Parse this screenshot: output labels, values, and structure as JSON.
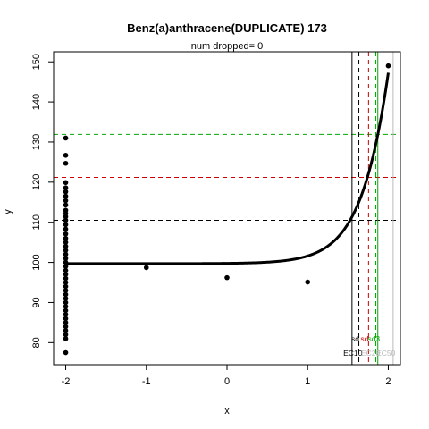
{
  "chart_data": {
    "type": "scatter",
    "title": "Benz(a)anthracene(DUPLICATE) 173",
    "subtitle": "num dropped= 0",
    "subtitle_color": "#ff0000",
    "xlabel": "x",
    "ylabel": "y",
    "xlim": [
      -2.15,
      2.15
    ],
    "ylim": [
      74.5,
      152.5
    ],
    "x_ticks": [
      -2,
      -1,
      0,
      1,
      2
    ],
    "y_ticks": [
      80,
      90,
      100,
      110,
      120,
      130,
      140,
      150
    ],
    "points": [
      {
        "x": -2,
        "y": 131.0
      },
      {
        "x": -2,
        "y": 126.7
      },
      {
        "x": -2,
        "y": 124.7
      },
      {
        "x": -2,
        "y": 119.9
      },
      {
        "x": -2,
        "y": 118.6
      },
      {
        "x": -2,
        "y": 117.6
      },
      {
        "x": -2,
        "y": 116.5
      },
      {
        "x": -2,
        "y": 115.4
      },
      {
        "x": -2,
        "y": 114.3
      },
      {
        "x": -2,
        "y": 113.0
      },
      {
        "x": -2,
        "y": 112.2
      },
      {
        "x": -2,
        "y": 111.4
      },
      {
        "x": -2,
        "y": 110.5
      },
      {
        "x": -2,
        "y": 109.4
      },
      {
        "x": -2,
        "y": 108.3
      },
      {
        "x": -2,
        "y": 107.1
      },
      {
        "x": -2,
        "y": 106.0
      },
      {
        "x": -2,
        "y": 105.0
      },
      {
        "x": -2,
        "y": 104.0
      },
      {
        "x": -2,
        "y": 103.0
      },
      {
        "x": -2,
        "y": 102.0
      },
      {
        "x": -2,
        "y": 101.0
      },
      {
        "x": -2,
        "y": 100.0
      },
      {
        "x": -2,
        "y": 99.0
      },
      {
        "x": -2,
        "y": 98.0
      },
      {
        "x": -2,
        "y": 97.0
      },
      {
        "x": -2,
        "y": 96.0
      },
      {
        "x": -2,
        "y": 95.0
      },
      {
        "x": -2,
        "y": 94.0
      },
      {
        "x": -2,
        "y": 93.0
      },
      {
        "x": -2,
        "y": 92.0
      },
      {
        "x": -2,
        "y": 91.0
      },
      {
        "x": -2,
        "y": 90.0
      },
      {
        "x": -2,
        "y": 89.0
      },
      {
        "x": -2,
        "y": 88.0
      },
      {
        "x": -2,
        "y": 87.0
      },
      {
        "x": -2,
        "y": 86.0
      },
      {
        "x": -2,
        "y": 85.0
      },
      {
        "x": -2,
        "y": 84.0
      },
      {
        "x": -2,
        "y": 83.0
      },
      {
        "x": -2,
        "y": 82.0
      },
      {
        "x": -2,
        "y": 81.0
      },
      {
        "x": -2,
        "y": 77.5
      },
      {
        "x": -1,
        "y": 98.7
      },
      {
        "x": 0,
        "y": 96.2
      },
      {
        "x": 1,
        "y": 95.1
      },
      {
        "x": 2,
        "y": 149.0
      }
    ],
    "curve": {
      "type": "hill",
      "bottom": 99.7,
      "top": 500,
      "log_ec50": 2.6,
      "hill_slope": 1.45,
      "x_range": [
        -2,
        2
      ]
    },
    "hlines": [
      {
        "y": 110.5,
        "color": "#000000",
        "dash": true
      },
      {
        "y": 121.2,
        "color": "#cc0000",
        "dash": true
      },
      {
        "y": 131.9,
        "color": "#00aa00",
        "dash": true
      }
    ],
    "vlines": [
      {
        "x": 1.55,
        "color": "#000000",
        "dash": false
      },
      {
        "x": 1.635,
        "color": "#000000",
        "dash": true
      },
      {
        "x": 1.755,
        "color": "#cc0000",
        "dash": true
      },
      {
        "x": 1.845,
        "color": "#00aa00",
        "dash": true
      },
      {
        "x": 1.87,
        "color": "#00aa00",
        "dash": false
      },
      {
        "x": 2.06,
        "color": "#bbbbbb",
        "dash": false
      }
    ],
    "bottom_labels": {
      "sd_labels": [
        "sd",
        "sd",
        "sd"
      ],
      "sd_colors": [
        "#000000",
        "#cc0000",
        "#00aa00"
      ],
      "three_label": "3",
      "ec_labels": [
        "EC10",
        "EC20",
        "EC50"
      ],
      "ec_colors": [
        "#000000",
        "#bbbbbb",
        "#bbbbbb"
      ]
    }
  }
}
